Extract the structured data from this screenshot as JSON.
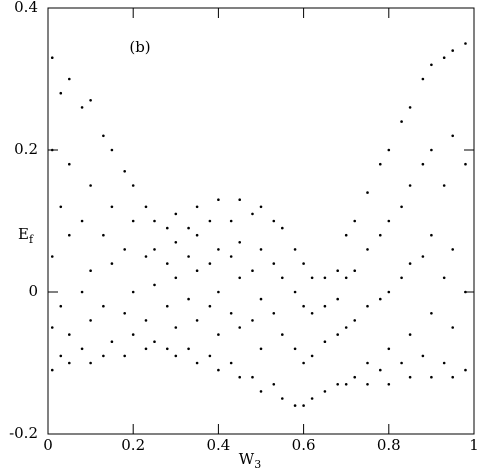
{
  "chart_data": {
    "type": "scatter",
    "annotation": "(b)",
    "xlabel": "W",
    "xlabel_subscript": "3",
    "ylabel": "E",
    "ylabel_subscript": "f",
    "xlim": [
      0,
      1
    ],
    "xticks": [
      0,
      0.2,
      0.4,
      0.6,
      0.8,
      1
    ],
    "ylim": [
      -0.2,
      0.4
    ],
    "yticks": [
      -0.2,
      0,
      0.2,
      0.4
    ],
    "color": "#000000",
    "x": [
      0.01,
      0.01,
      0.01,
      0.01,
      0.01,
      0.03,
      0.03,
      0.03,
      0.03,
      0.05,
      0.05,
      0.05,
      0.05,
      0.05,
      0.08,
      0.08,
      0.08,
      0.08,
      0.1,
      0.1,
      0.1,
      0.1,
      0.1,
      0.13,
      0.13,
      0.13,
      0.13,
      0.15,
      0.15,
      0.15,
      0.15,
      0.18,
      0.18,
      0.18,
      0.18,
      0.2,
      0.2,
      0.2,
      0.2,
      0.23,
      0.23,
      0.23,
      0.23,
      0.25,
      0.25,
      0.25,
      0.25,
      0.28,
      0.28,
      0.28,
      0.28,
      0.3,
      0.3,
      0.3,
      0.3,
      0.3,
      0.33,
      0.33,
      0.33,
      0.33,
      0.35,
      0.35,
      0.35,
      0.35,
      0.35,
      0.38,
      0.38,
      0.38,
      0.38,
      0.4,
      0.4,
      0.4,
      0.4,
      0.4,
      0.43,
      0.43,
      0.43,
      0.43,
      0.45,
      0.45,
      0.45,
      0.45,
      0.45,
      0.48,
      0.48,
      0.48,
      0.48,
      0.5,
      0.5,
      0.5,
      0.5,
      0.5,
      0.53,
      0.53,
      0.53,
      0.53,
      0.55,
      0.55,
      0.55,
      0.55,
      0.58,
      0.58,
      0.58,
      0.58,
      0.6,
      0.6,
      0.6,
      0.6,
      0.62,
      0.62,
      0.62,
      0.62,
      0.65,
      0.65,
      0.65,
      0.65,
      0.68,
      0.68,
      0.68,
      0.68,
      0.7,
      0.7,
      0.7,
      0.7,
      0.72,
      0.72,
      0.72,
      0.72,
      0.75,
      0.75,
      0.75,
      0.75,
      0.75,
      0.78,
      0.78,
      0.78,
      0.78,
      0.8,
      0.8,
      0.8,
      0.8,
      0.8,
      0.83,
      0.83,
      0.83,
      0.83,
      0.85,
      0.85,
      0.85,
      0.85,
      0.85,
      0.88,
      0.88,
      0.88,
      0.88,
      0.9,
      0.9,
      0.9,
      0.9,
      0.9,
      0.93,
      0.93,
      0.93,
      0.93,
      0.95,
      0.95,
      0.95,
      0.95,
      0.95,
      0.98,
      0.98,
      0.98,
      0.98
    ],
    "values": [
      0.33,
      0.2,
      0.05,
      -0.05,
      -0.11,
      0.28,
      0.12,
      -0.02,
      -0.09,
      0.3,
      0.18,
      0.08,
      -0.06,
      -0.1,
      0.26,
      0.1,
      0.0,
      -0.08,
      0.27,
      0.15,
      0.03,
      -0.04,
      -0.1,
      0.22,
      0.08,
      -0.02,
      -0.09,
      0.2,
      0.12,
      0.04,
      -0.07,
      0.17,
      0.06,
      -0.03,
      -0.09,
      0.15,
      0.1,
      0.0,
      -0.06,
      0.12,
      0.05,
      -0.04,
      -0.08,
      0.1,
      0.06,
      0.01,
      -0.07,
      0.09,
      0.04,
      -0.02,
      -0.08,
      0.11,
      0.07,
      0.02,
      -0.05,
      -0.09,
      0.09,
      0.05,
      -0.01,
      -0.08,
      0.12,
      0.08,
      0.03,
      -0.04,
      -0.1,
      0.1,
      0.04,
      -0.02,
      -0.09,
      0.13,
      0.06,
      0.0,
      -0.06,
      -0.11,
      0.1,
      0.05,
      -0.03,
      -0.1,
      0.13,
      0.07,
      0.02,
      -0.05,
      -0.12,
      0.11,
      0.03,
      -0.04,
      -0.12,
      0.12,
      0.06,
      -0.01,
      -0.08,
      -0.14,
      0.1,
      0.04,
      -0.03,
      -0.13,
      0.09,
      0.02,
      -0.06,
      -0.15,
      0.06,
      0.0,
      -0.08,
      -0.16,
      0.04,
      -0.02,
      -0.1,
      -0.16,
      0.02,
      -0.03,
      -0.09,
      -0.15,
      0.02,
      -0.02,
      -0.07,
      -0.14,
      0.03,
      -0.01,
      -0.06,
      -0.13,
      0.08,
      0.02,
      -0.05,
      -0.13,
      0.1,
      0.03,
      -0.04,
      -0.12,
      0.14,
      0.06,
      -0.02,
      -0.1,
      -0.13,
      0.18,
      0.08,
      -0.01,
      -0.11,
      0.2,
      0.1,
      0.0,
      -0.08,
      -0.13,
      0.24,
      0.12,
      0.02,
      -0.1,
      0.26,
      0.15,
      0.04,
      -0.06,
      -0.12,
      0.3,
      0.18,
      0.05,
      -0.09,
      0.32,
      0.2,
      0.08,
      -0.03,
      -0.12,
      0.33,
      0.15,
      0.02,
      -0.1,
      0.34,
      0.22,
      0.06,
      -0.05,
      -0.12,
      0.35,
      0.18,
      0.0,
      -0.11
    ]
  }
}
